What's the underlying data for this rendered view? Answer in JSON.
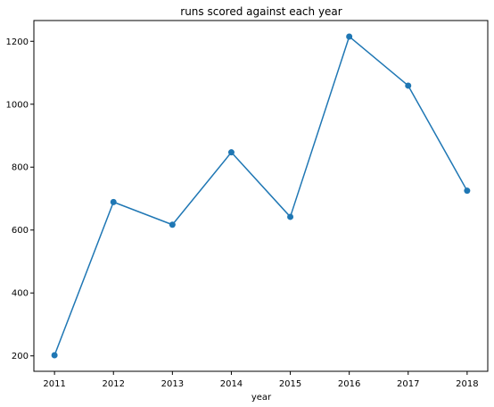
{
  "chart_data": {
    "type": "line",
    "title": "runs scored against each year",
    "xlabel": "year",
    "ylabel": "",
    "x": [
      2011,
      2012,
      2013,
      2014,
      2015,
      2016,
      2017,
      2018
    ],
    "series": [
      {
        "values": [
          202,
          689,
          617,
          847,
          642,
          1215,
          1059,
          725
        ],
        "color": "#1f77b4",
        "marker": "circle"
      }
    ],
    "x_ticks": [
      "2011",
      "2012",
      "2013",
      "2014",
      "2015",
      "2016",
      "2017",
      "2018"
    ],
    "y_ticks": [
      "200",
      "400",
      "600",
      "800",
      "1000",
      "1200"
    ],
    "xlim": [
      2010.65,
      2018.35
    ],
    "ylim": [
      151,
      1266
    ],
    "grid": false,
    "legend": "none"
  }
}
